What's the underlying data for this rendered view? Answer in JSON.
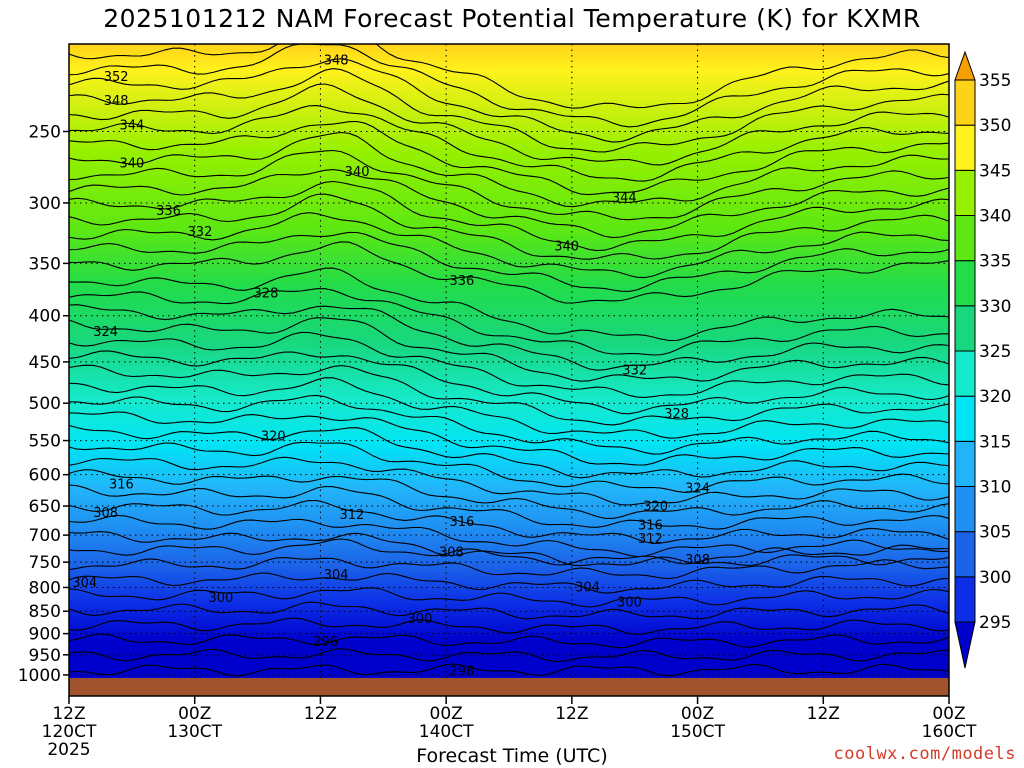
{
  "chart_data": {
    "type": "heatmap",
    "title": "2025101212 NAM Forecast Potential Temperature (K) for KXMR",
    "xlabel": "Forecast Time (UTC)",
    "ylabel": "",
    "credit": "coolwx.com/models",
    "x_ticks": [
      {
        "hour": 0,
        "label1": "12Z",
        "label2": "120CT",
        "label3": "2025"
      },
      {
        "hour": 12,
        "label1": "00Z",
        "label2": "130CT",
        "label3": ""
      },
      {
        "hour": 24,
        "label1": "12Z",
        "label2": "",
        "label3": ""
      },
      {
        "hour": 36,
        "label1": "00Z",
        "label2": "140CT",
        "label3": ""
      },
      {
        "hour": 48,
        "label1": "12Z",
        "label2": "",
        "label3": ""
      },
      {
        "hour": 60,
        "label1": "00Z",
        "label2": "150CT",
        "label3": ""
      },
      {
        "hour": 72,
        "label1": "12Z",
        "label2": "",
        "label3": ""
      },
      {
        "hour": 84,
        "label1": "00Z",
        "label2": "160CT",
        "label3": ""
      }
    ],
    "xlim": [
      0,
      84
    ],
    "y_ticks": [
      250,
      300,
      350,
      400,
      450,
      500,
      550,
      600,
      650,
      700,
      750,
      800,
      850,
      900,
      950,
      1000
    ],
    "ylim": [
      1013,
      200
    ],
    "y_scale": "log",
    "colorbar": {
      "levels": [
        295,
        300,
        305,
        310,
        315,
        320,
        325,
        330,
        335,
        340,
        345,
        350,
        355
      ],
      "colors": [
        "#0000cd",
        "#0c2ee6",
        "#1b63e8",
        "#1f8ff2",
        "#22b4fa",
        "#00e4f5",
        "#16eacc",
        "#18d77e",
        "#22dc4a",
        "#5de812",
        "#96f000",
        "#fff11c",
        "#ffd21a",
        "#f0a000"
      ],
      "below_color": "#8a2be2",
      "above_color": "#f5a000"
    },
    "contour_labels": [
      {
        "value": "348",
        "hour": 25.5,
        "p": 209
      },
      {
        "value": "352",
        "hour": 4.5,
        "p": 218
      },
      {
        "value": "348",
        "hour": 4.5,
        "p": 232
      },
      {
        "value": "344",
        "hour": 6.0,
        "p": 247
      },
      {
        "value": "340",
        "hour": 6.0,
        "p": 272
      },
      {
        "value": "340",
        "hour": 27.5,
        "p": 278
      },
      {
        "value": "344",
        "hour": 53.0,
        "p": 297
      },
      {
        "value": "336",
        "hour": 9.5,
        "p": 307
      },
      {
        "value": "332",
        "hour": 12.5,
        "p": 324
      },
      {
        "value": "340",
        "hour": 47.5,
        "p": 336
      },
      {
        "value": "336",
        "hour": 37.5,
        "p": 367
      },
      {
        "value": "328",
        "hour": 18.8,
        "p": 379
      },
      {
        "value": "324",
        "hour": 3.5,
        "p": 418
      },
      {
        "value": "332",
        "hour": 54.0,
        "p": 461
      },
      {
        "value": "328",
        "hour": 58.0,
        "p": 515
      },
      {
        "value": "320",
        "hour": 19.5,
        "p": 546
      },
      {
        "value": "316",
        "hour": 5.0,
        "p": 617
      },
      {
        "value": "324",
        "hour": 60.0,
        "p": 623
      },
      {
        "value": "320",
        "hour": 56.0,
        "p": 652
      },
      {
        "value": "308",
        "hour": 3.5,
        "p": 663
      },
      {
        "value": "312",
        "hour": 27.0,
        "p": 667
      },
      {
        "value": "316",
        "hour": 37.5,
        "p": 679
      },
      {
        "value": "316",
        "hour": 55.5,
        "p": 685
      },
      {
        "value": "312",
        "hour": 55.5,
        "p": 709
      },
      {
        "value": "308",
        "hour": 36.5,
        "p": 734
      },
      {
        "value": "308",
        "hour": 60.0,
        "p": 748
      },
      {
        "value": "304",
        "hour": 25.5,
        "p": 777
      },
      {
        "value": "304",
        "hour": 1.5,
        "p": 793
      },
      {
        "value": "304",
        "hour": 49.5,
        "p": 802
      },
      {
        "value": "300",
        "hour": 14.5,
        "p": 824
      },
      {
        "value": "300",
        "hour": 53.5,
        "p": 833
      },
      {
        "value": "300",
        "hour": 33.5,
        "p": 869
      },
      {
        "value": "296",
        "hour": 24.5,
        "p": 922
      },
      {
        "value": "298",
        "hour": 37.5,
        "p": 994
      }
    ]
  }
}
